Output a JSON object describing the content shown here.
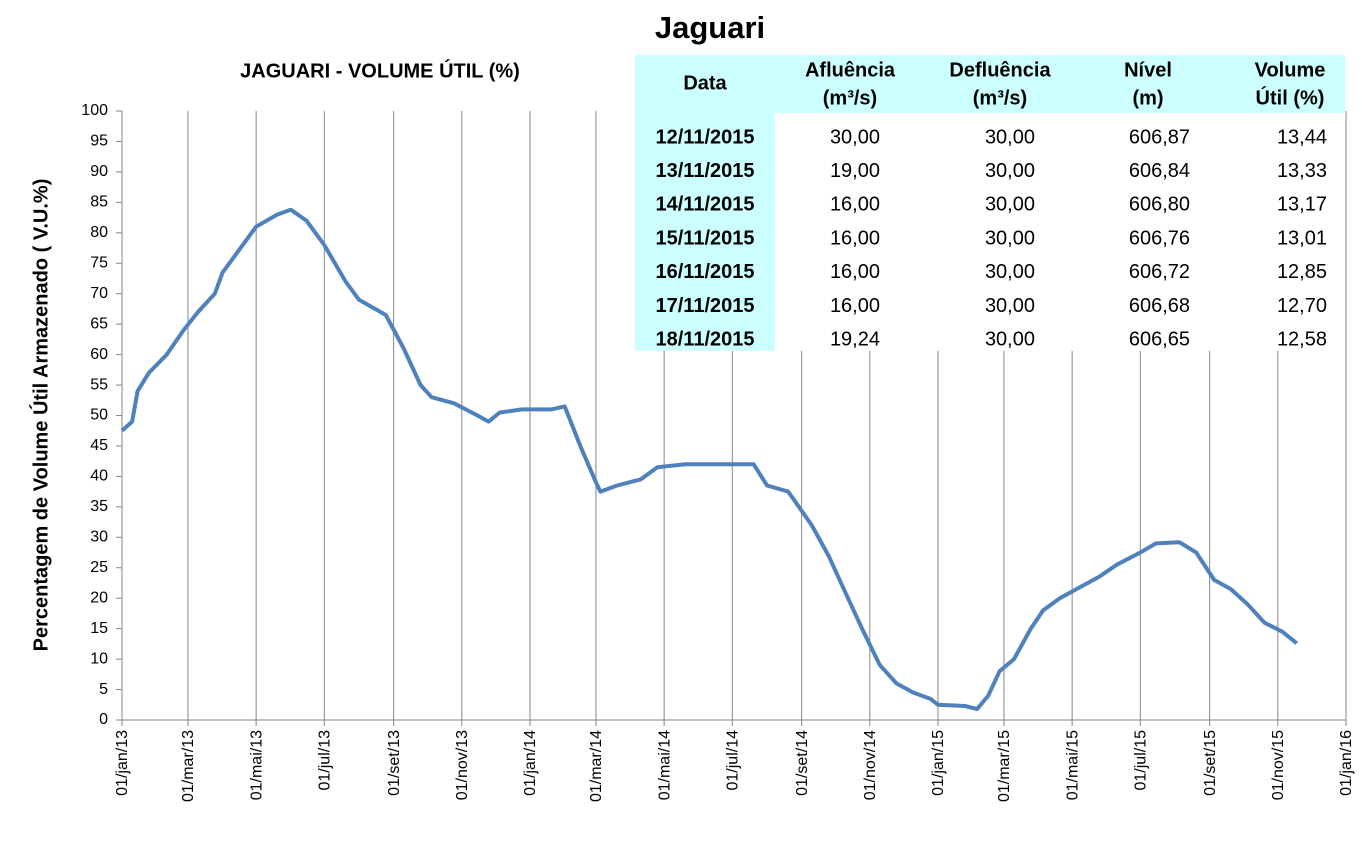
{
  "chart_data": {
    "type": "line",
    "title": "JAGUARI - VOLUME ÚTIL (%)",
    "y_label": "Percentagem de Volume Útil Armazenado ( V.U.%)",
    "x": [
      "2013-01-01",
      "2013-01-10",
      "2013-01-15",
      "2013-01-25",
      "2013-02-10",
      "2013-02-25",
      "2013-03-10",
      "2013-03-25",
      "2013-04-01",
      "2013-04-15",
      "2013-05-01",
      "2013-05-20",
      "2013-06-01",
      "2013-06-15",
      "2013-07-01",
      "2013-07-20",
      "2013-08-01",
      "2013-08-25",
      "2013-09-10",
      "2013-09-25",
      "2013-10-05",
      "2013-10-25",
      "2013-11-15",
      "2013-11-25",
      "2013-12-05",
      "2013-12-25",
      "2014-01-20",
      "2014-02-01",
      "2014-02-15",
      "2014-03-01",
      "2014-03-05",
      "2014-03-20",
      "2014-04-10",
      "2014-04-25",
      "2014-05-20",
      "2014-07-10",
      "2014-07-20",
      "2014-08-01",
      "2014-08-20",
      "2014-09-10",
      "2014-09-25",
      "2014-10-10",
      "2014-10-25",
      "2014-11-10",
      "2014-11-25",
      "2014-12-10",
      "2014-12-25",
      "2015-01-01",
      "2015-01-25",
      "2015-02-05",
      "2015-02-15",
      "2015-02-25",
      "2015-03-10",
      "2015-03-25",
      "2015-04-05",
      "2015-04-20",
      "2015-05-10",
      "2015-05-25",
      "2015-06-10",
      "2015-07-01",
      "2015-07-15",
      "2015-08-05",
      "2015-08-20",
      "2015-09-05",
      "2015-09-20",
      "2015-10-05",
      "2015-10-20",
      "2015-11-05",
      "2015-11-18"
    ],
    "series": [
      {
        "name": "Volume Útil",
        "color": "#4f81bd",
        "values": [
          47.5,
          49,
          54,
          57,
          60,
          64,
          67,
          70,
          73.5,
          77,
          81,
          83,
          83.8,
          82,
          78,
          72,
          69,
          66.5,
          61,
          55,
          53,
          52,
          50,
          49,
          50.5,
          51,
          51,
          51.5,
          45,
          39,
          37.5,
          38.5,
          39.5,
          41.5,
          42,
          42,
          42,
          38.5,
          37.5,
          32,
          27,
          21,
          15,
          9,
          6,
          4.5,
          3.5,
          2.5,
          2.3,
          1.8,
          4,
          8,
          10,
          15,
          18,
          20,
          22,
          23.5,
          25.5,
          27.5,
          29,
          29.2,
          27.5,
          23,
          21.5,
          19,
          16,
          14.5,
          12.6
        ]
      }
    ],
    "xlim": [
      "2013-01-01",
      "2016-01-01"
    ],
    "xticks": [
      {
        "value": "2013-01-01",
        "label": "01/jan/13"
      },
      {
        "value": "2013-03-01",
        "label": "01/mar/13"
      },
      {
        "value": "2013-05-01",
        "label": "01/mai/13"
      },
      {
        "value": "2013-07-01",
        "label": "01/jul/13"
      },
      {
        "value": "2013-09-01",
        "label": "01/set/13"
      },
      {
        "value": "2013-11-01",
        "label": "01/nov/13"
      },
      {
        "value": "2014-01-01",
        "label": "01/jan/14"
      },
      {
        "value": "2014-03-01",
        "label": "01/mar/14"
      },
      {
        "value": "2014-05-01",
        "label": "01/mai/14"
      },
      {
        "value": "2014-07-01",
        "label": "01/jul/14"
      },
      {
        "value": "2014-09-01",
        "label": "01/set/14"
      },
      {
        "value": "2014-11-01",
        "label": "01/nov/14"
      },
      {
        "value": "2015-01-01",
        "label": "01/jan/15"
      },
      {
        "value": "2015-03-01",
        "label": "01/mar/15"
      },
      {
        "value": "2015-05-01",
        "label": "01/mai/15"
      },
      {
        "value": "2015-07-01",
        "label": "01/jul/15"
      },
      {
        "value": "2015-09-01",
        "label": "01/set/15"
      },
      {
        "value": "2015-11-01",
        "label": "01/nov/15"
      },
      {
        "value": "2016-01-01",
        "label": "01/jan/16"
      }
    ],
    "ylim": [
      0,
      100
    ],
    "yticks": [
      0,
      5,
      10,
      15,
      20,
      25,
      30,
      35,
      40,
      45,
      50,
      55,
      60,
      65,
      70,
      75,
      80,
      85,
      90,
      95,
      100
    ],
    "xgrid": true
  },
  "table": {
    "title": "Jaguari",
    "header": [
      [
        "Data"
      ],
      [
        "Afluência",
        "(m³/s)"
      ],
      [
        "Defluência",
        "(m³/s)"
      ],
      [
        "Nível",
        "(m)"
      ],
      [
        "Volume",
        "Útil (%)"
      ]
    ],
    "rows": [
      [
        "12/11/2015",
        "30,00",
        "30,00",
        "606,87",
        "13,44"
      ],
      [
        "13/11/2015",
        "19,00",
        "30,00",
        "606,84",
        "13,33"
      ],
      [
        "14/11/2015",
        "16,00",
        "30,00",
        "606,80",
        "13,17"
      ],
      [
        "15/11/2015",
        "16,00",
        "30,00",
        "606,76",
        "13,01"
      ],
      [
        "16/11/2015",
        "16,00",
        "30,00",
        "606,72",
        "12,85"
      ],
      [
        "17/11/2015",
        "16,00",
        "30,00",
        "606,68",
        "12,70"
      ],
      [
        "18/11/2015",
        "19,24",
        "30,00",
        "606,65",
        "12,58"
      ]
    ]
  }
}
